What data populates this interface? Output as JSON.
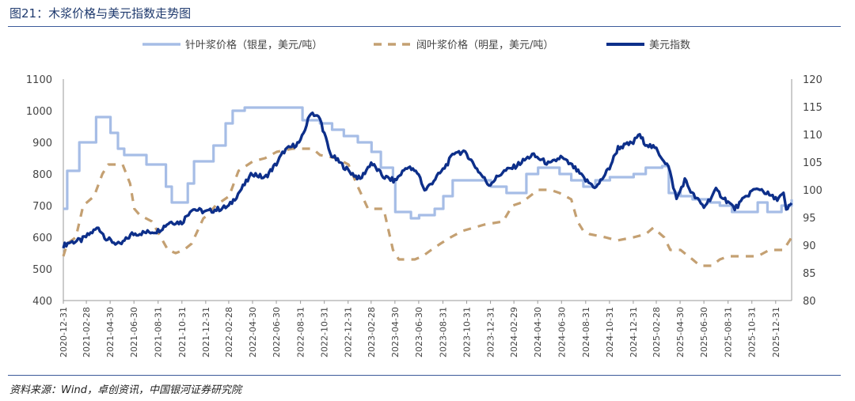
{
  "figure": {
    "title": "图21：木浆价格与美元指数走势图",
    "source": "资料来源：Wind，卓创资讯，中国银河证券研究院"
  },
  "colors": {
    "needle": "#a6bde6",
    "broad": "#c4a072",
    "usd": "#0d2f8a",
    "axis": "#444444",
    "rule": "#3b5a9a",
    "title": "#1f3a6e"
  },
  "chart_data": {
    "type": "line",
    "title": "木浆价格与美元指数走势图",
    "x_range": [
      "2020-12-31",
      "2026-02-10"
    ],
    "x_ticks": [
      "2020-12-31",
      "2021-02-28",
      "2021-04-30",
      "2021-06-30",
      "2021-08-31",
      "2021-10-31",
      "2021-12-31",
      "2022-02-28",
      "2022-04-30",
      "2022-06-30",
      "2022-08-31",
      "2022-10-31",
      "2022-12-31",
      "2023-02-28",
      "2023-04-30",
      "2023-06-30",
      "2023-08-31",
      "2023-10-31",
      "2023-12-31",
      "2024-02-29",
      "2024-04-30",
      "2024-06-30",
      "2024-08-31",
      "2024-10-31",
      "2024-12-31",
      "2025-02-28",
      "2025-04-30",
      "2025-06-30",
      "2025-08-31",
      "2025-10-31",
      "2025-12-31"
    ],
    "y_left": {
      "min": 400,
      "max": 1100,
      "ticks": [
        400,
        500,
        600,
        700,
        800,
        900,
        1000,
        1100
      ],
      "unit": "美元/吨"
    },
    "y_right": {
      "min": 80,
      "max": 120,
      "ticks": [
        80,
        85,
        90,
        95,
        100,
        105,
        110,
        115,
        120
      ]
    },
    "legend": {
      "position": "top"
    },
    "series": [
      {
        "name": "针叶浆价格（银星，美元/吨）",
        "axis": "left",
        "style": "step",
        "points": [
          [
            "2020-12-31",
            690
          ],
          [
            "2021-01-10",
            810
          ],
          [
            "2021-02-10",
            900
          ],
          [
            "2021-03-25",
            980
          ],
          [
            "2021-05-01",
            930
          ],
          [
            "2021-05-20",
            880
          ],
          [
            "2021-06-05",
            860
          ],
          [
            "2021-07-25",
            860
          ],
          [
            "2021-08-01",
            830
          ],
          [
            "2021-09-10",
            830
          ],
          [
            "2021-09-20",
            760
          ],
          [
            "2021-10-05",
            710
          ],
          [
            "2021-11-15",
            770
          ],
          [
            "2021-12-01",
            840
          ],
          [
            "2022-01-01",
            840
          ],
          [
            "2022-01-20",
            890
          ],
          [
            "2022-02-20",
            960
          ],
          [
            "2022-03-10",
            1000
          ],
          [
            "2022-04-10",
            1010
          ],
          [
            "2022-06-01",
            1010
          ],
          [
            "2022-08-20",
            1010
          ],
          [
            "2022-09-05",
            970
          ],
          [
            "2022-10-20",
            960
          ],
          [
            "2022-11-20",
            940
          ],
          [
            "2022-12-20",
            920
          ],
          [
            "2023-01-25",
            900
          ],
          [
            "2023-03-01",
            870
          ],
          [
            "2023-03-25",
            820
          ],
          [
            "2023-04-25",
            780
          ],
          [
            "2023-05-01",
            680
          ],
          [
            "2023-06-10",
            660
          ],
          [
            "2023-07-01",
            670
          ],
          [
            "2023-08-10",
            690
          ],
          [
            "2023-09-01",
            730
          ],
          [
            "2023-09-25",
            780
          ],
          [
            "2023-12-25",
            780
          ],
          [
            "2024-01-01",
            760
          ],
          [
            "2024-02-10",
            740
          ],
          [
            "2024-04-01",
            800
          ],
          [
            "2024-05-01",
            820
          ],
          [
            "2024-06-25",
            800
          ],
          [
            "2024-07-25",
            780
          ],
          [
            "2024-08-25",
            760
          ],
          [
            "2024-09-25",
            780
          ],
          [
            "2024-11-01",
            790
          ],
          [
            "2025-01-01",
            800
          ],
          [
            "2025-02-01",
            820
          ],
          [
            "2025-03-15",
            825
          ],
          [
            "2025-04-01",
            740
          ],
          [
            "2025-05-01",
            730
          ],
          [
            "2025-06-01",
            720
          ],
          [
            "2025-07-15",
            710
          ],
          [
            "2025-08-10",
            700
          ],
          [
            "2025-09-10",
            680
          ],
          [
            "2025-11-15",
            710
          ],
          [
            "2025-12-10",
            680
          ],
          [
            "2026-01-15",
            700
          ],
          [
            "2026-02-10",
            720
          ]
        ]
      },
      {
        "name": "阔叶浆价格（明星，美元/吨）",
        "axis": "left",
        "style": "dashed",
        "points": [
          [
            "2020-12-31",
            540
          ],
          [
            "2021-01-10",
            580
          ],
          [
            "2021-02-01",
            600
          ],
          [
            "2021-02-20",
            700
          ],
          [
            "2021-03-20",
            730
          ],
          [
            "2021-04-10",
            800
          ],
          [
            "2021-04-25",
            830
          ],
          [
            "2021-06-01",
            830
          ],
          [
            "2021-06-20",
            770
          ],
          [
            "2021-07-01",
            690
          ],
          [
            "2021-07-15",
            670
          ],
          [
            "2021-08-15",
            650
          ],
          [
            "2021-09-25",
            560
          ],
          [
            "2021-10-15",
            550
          ],
          [
            "2021-11-05",
            560
          ],
          [
            "2021-11-25",
            580
          ],
          [
            "2021-12-25",
            660
          ],
          [
            "2022-01-05",
            670
          ],
          [
            "2022-01-25",
            700
          ],
          [
            "2022-03-01",
            730
          ],
          [
            "2022-03-25",
            810
          ],
          [
            "2022-05-01",
            840
          ],
          [
            "2022-06-01",
            850
          ],
          [
            "2022-07-01",
            870
          ],
          [
            "2022-08-10",
            880
          ],
          [
            "2022-10-01",
            880
          ],
          [
            "2022-10-20",
            860
          ],
          [
            "2022-12-01",
            850
          ],
          [
            "2023-01-01",
            830
          ],
          [
            "2023-01-25",
            760
          ],
          [
            "2023-02-20",
            690
          ],
          [
            "2023-04-01",
            690
          ],
          [
            "2023-04-25",
            560
          ],
          [
            "2023-05-10",
            530
          ],
          [
            "2023-06-20",
            530
          ],
          [
            "2023-07-10",
            540
          ],
          [
            "2023-08-01",
            560
          ],
          [
            "2023-08-25",
            580
          ],
          [
            "2023-09-20",
            600
          ],
          [
            "2023-10-20",
            620
          ],
          [
            "2023-12-15",
            640
          ],
          [
            "2024-02-01",
            650
          ],
          [
            "2024-02-25",
            700
          ],
          [
            "2024-03-20",
            710
          ],
          [
            "2024-04-10",
            730
          ],
          [
            "2024-05-01",
            750
          ],
          [
            "2024-06-01",
            750
          ],
          [
            "2024-06-25",
            740
          ],
          [
            "2024-07-25",
            720
          ],
          [
            "2024-08-10",
            650
          ],
          [
            "2024-08-25",
            620
          ],
          [
            "2024-09-10",
            610
          ],
          [
            "2024-10-20",
            600
          ],
          [
            "2024-11-20",
            590
          ],
          [
            "2025-01-01",
            600
          ],
          [
            "2025-02-01",
            610
          ],
          [
            "2025-02-20",
            630
          ],
          [
            "2025-03-20",
            600
          ],
          [
            "2025-04-05",
            560
          ],
          [
            "2025-05-01",
            560
          ],
          [
            "2025-06-01",
            530
          ],
          [
            "2025-06-20",
            510
          ],
          [
            "2025-07-20",
            510
          ],
          [
            "2025-08-10",
            530
          ],
          [
            "2025-09-01",
            540
          ],
          [
            "2025-11-15",
            540
          ],
          [
            "2025-12-15",
            560
          ],
          [
            "2026-01-20",
            560
          ],
          [
            "2026-02-10",
            600
          ]
        ]
      },
      {
        "name": "美元指数",
        "axis": "right",
        "style": "line",
        "points": [
          [
            "2020-12-31",
            89.9
          ],
          [
            "2021-01-15",
            90.5
          ],
          [
            "2021-02-15",
            90.9
          ],
          [
            "2021-03-31",
            93.2
          ],
          [
            "2021-04-20",
            91.2
          ],
          [
            "2021-05-25",
            90.0
          ],
          [
            "2021-06-25",
            92.0
          ],
          [
            "2021-07-31",
            92.3
          ],
          [
            "2021-08-31",
            92.6
          ],
          [
            "2021-09-30",
            94.2
          ],
          [
            "2021-10-31",
            94.1
          ],
          [
            "2021-11-25",
            96.6
          ],
          [
            "2021-12-31",
            96.0
          ],
          [
            "2022-01-31",
            96.5
          ],
          [
            "2022-02-28",
            97.0
          ],
          [
            "2022-03-20",
            98.9
          ],
          [
            "2022-04-30",
            103.0
          ],
          [
            "2022-05-31",
            102.1
          ],
          [
            "2022-06-30",
            104.7
          ],
          [
            "2022-07-20",
            107.0
          ],
          [
            "2022-08-31",
            108.7
          ],
          [
            "2022-09-27",
            114.1
          ],
          [
            "2022-10-20",
            112.8
          ],
          [
            "2022-11-15",
            106.5
          ],
          [
            "2022-12-31",
            103.5
          ],
          [
            "2023-01-31",
            101.9
          ],
          [
            "2023-02-28",
            104.9
          ],
          [
            "2023-03-31",
            102.4
          ],
          [
            "2023-04-30",
            101.6
          ],
          [
            "2023-05-31",
            104.2
          ],
          [
            "2023-06-30",
            102.9
          ],
          [
            "2023-07-15",
            99.8
          ],
          [
            "2023-08-31",
            103.6
          ],
          [
            "2023-10-03",
            107.0
          ],
          [
            "2023-10-31",
            106.5
          ],
          [
            "2023-11-30",
            103.4
          ],
          [
            "2023-12-27",
            100.9
          ],
          [
            "2024-01-31",
            103.2
          ],
          [
            "2024-02-29",
            104.1
          ],
          [
            "2024-04-16",
            106.3
          ],
          [
            "2024-05-31",
            104.6
          ],
          [
            "2024-06-28",
            105.9
          ],
          [
            "2024-07-31",
            104.1
          ],
          [
            "2024-08-31",
            101.7
          ],
          [
            "2024-09-27",
            100.4
          ],
          [
            "2024-10-31",
            104.0
          ],
          [
            "2024-11-22",
            107.6
          ],
          [
            "2024-12-31",
            108.5
          ],
          [
            "2025-01-13",
            110.0
          ],
          [
            "2025-01-31",
            108.4
          ],
          [
            "2025-02-28",
            107.3
          ],
          [
            "2025-03-31",
            104.2
          ],
          [
            "2025-04-21",
            98.3
          ],
          [
            "2025-05-12",
            101.8
          ],
          [
            "2025-05-31",
            99.3
          ],
          [
            "2025-06-30",
            96.9
          ],
          [
            "2025-07-31",
            99.9
          ],
          [
            "2025-08-31",
            97.8
          ],
          [
            "2025-09-17",
            96.6
          ],
          [
            "2025-10-31",
            99.8
          ],
          [
            "2025-11-21",
            100.2
          ],
          [
            "2025-12-31",
            98.3
          ],
          [
            "2026-01-20",
            99.2
          ],
          [
            "2026-01-27",
            96.2
          ],
          [
            "2026-02-10",
            97.6
          ]
        ]
      }
    ]
  }
}
